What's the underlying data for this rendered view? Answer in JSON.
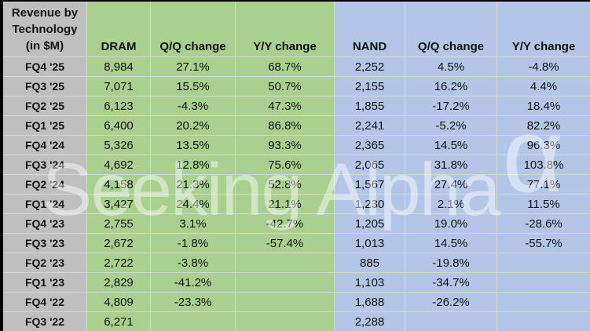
{
  "title_lines": [
    "Revenue by",
    "Technology",
    "(in $M)"
  ],
  "watermark": {
    "text": "Seeking Alpha",
    "symbol": "α"
  },
  "colors": {
    "dram_bg": "#a9d08e",
    "nand_bg": "#b4c6e7",
    "label_bg": "#bfbfbf",
    "gridline": "#d6d6d6",
    "frame": "#000000"
  },
  "chart_data": {
    "type": "table",
    "title": "Revenue by Technology (in $M)",
    "column_headers": [
      "DRAM",
      "Q/Q change",
      "Y/Y change",
      "NAND",
      "Q/Q change",
      "Y/Y change"
    ],
    "rows": [
      {
        "label": "FQ4 '25",
        "dram": "8,984",
        "dram_qq": "27.1%",
        "dram_yy": "68.7%",
        "nand": "2,252",
        "nand_qq": "4.5%",
        "nand_yy": "-4.8%"
      },
      {
        "label": "FQ3 '25",
        "dram": "7,071",
        "dram_qq": "15.5%",
        "dram_yy": "50.7%",
        "nand": "2,155",
        "nand_qq": "16.2%",
        "nand_yy": "4.4%"
      },
      {
        "label": "FQ2 '25",
        "dram": "6,123",
        "dram_qq": "-4.3%",
        "dram_yy": "47.3%",
        "nand": "1,855",
        "nand_qq": "-17.2%",
        "nand_yy": "18.4%"
      },
      {
        "label": "FQ1 '25",
        "dram": "6,400",
        "dram_qq": "20.2%",
        "dram_yy": "86.8%",
        "nand": "2,241",
        "nand_qq": "-5.2%",
        "nand_yy": "82.2%"
      },
      {
        "label": "FQ4 '24",
        "dram": "5,326",
        "dram_qq": "13.5%",
        "dram_yy": "93.3%",
        "nand": "2,365",
        "nand_qq": "14.5%",
        "nand_yy": "96.3%"
      },
      {
        "label": "FQ3 '24",
        "dram": "4,692",
        "dram_qq": "12.8%",
        "dram_yy": "75.6%",
        "nand": "2,065",
        "nand_qq": "31.8%",
        "nand_yy": "103.8%"
      },
      {
        "label": "FQ2 '24",
        "dram": "4,158",
        "dram_qq": "21.3%",
        "dram_yy": "52.8%",
        "nand": "1,567",
        "nand_qq": "27.4%",
        "nand_yy": "77.1%"
      },
      {
        "label": "FQ1 '24",
        "dram": "3,427",
        "dram_qq": "24.4%",
        "dram_yy": "21.1%",
        "nand": "1,230",
        "nand_qq": "2.1%",
        "nand_yy": "11.5%"
      },
      {
        "label": "FQ4 '23",
        "dram": "2,755",
        "dram_qq": "3.1%",
        "dram_yy": "-42.7%",
        "nand": "1,205",
        "nand_qq": "19.0%",
        "nand_yy": "-28.6%"
      },
      {
        "label": "FQ3 '23",
        "dram": "2,672",
        "dram_qq": "-1.8%",
        "dram_yy": "-57.4%",
        "nand": "1,013",
        "nand_qq": "14.5%",
        "nand_yy": "-55.7%"
      },
      {
        "label": "FQ2 '23",
        "dram": "2,722",
        "dram_qq": "-3.8%",
        "dram_yy": "",
        "nand": "885",
        "nand_qq": "-19.8%",
        "nand_yy": ""
      },
      {
        "label": "FQ1 '23",
        "dram": "2,829",
        "dram_qq": "-41.2%",
        "dram_yy": "",
        "nand": "1,103",
        "nand_qq": "-34.7%",
        "nand_yy": ""
      },
      {
        "label": "FQ4 '22",
        "dram": "4,809",
        "dram_qq": "-23.3%",
        "dram_yy": "",
        "nand": "1,688",
        "nand_qq": "-26.2%",
        "nand_yy": ""
      },
      {
        "label": "FQ3 '22",
        "dram": "6,271",
        "dram_qq": "",
        "dram_yy": "",
        "nand": "2,288",
        "nand_qq": "",
        "nand_yy": ""
      }
    ]
  }
}
